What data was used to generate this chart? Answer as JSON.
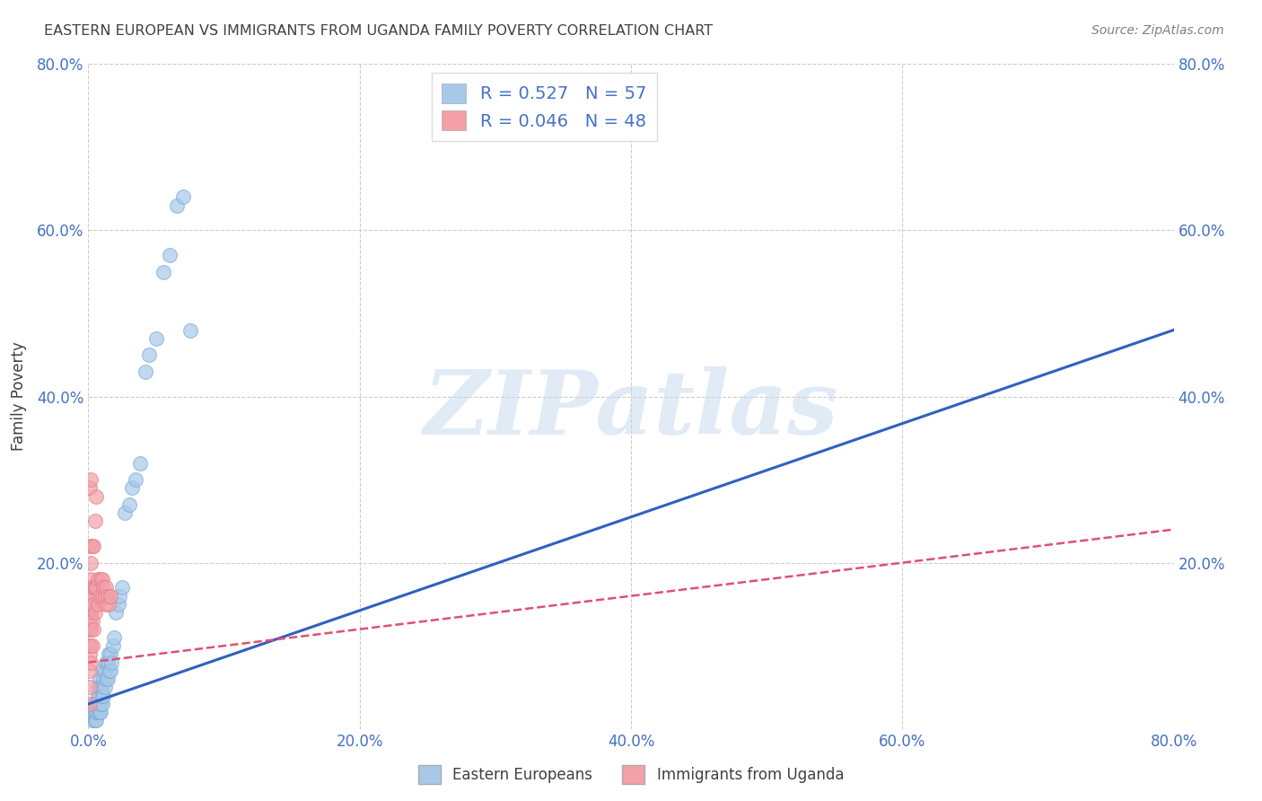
{
  "title": "EASTERN EUROPEAN VS IMMIGRANTS FROM UGANDA FAMILY POVERTY CORRELATION CHART",
  "source": "Source: ZipAtlas.com",
  "ylabel": "Family Poverty",
  "xlim": [
    0,
    0.8
  ],
  "ylim": [
    0,
    0.8
  ],
  "xticks": [
    0.0,
    0.2,
    0.4,
    0.6,
    0.8
  ],
  "yticks": [
    0.0,
    0.2,
    0.4,
    0.6,
    0.8
  ],
  "xticklabels": [
    "0.0%",
    "20.0%",
    "40.0%",
    "60.0%",
    "80.0%"
  ],
  "yticklabels_left": [
    "",
    "20.0%",
    "40.0%",
    "60.0%",
    "80.0%"
  ],
  "yticklabels_right": [
    "",
    "20.0%",
    "40.0%",
    "60.0%",
    "80.0%"
  ],
  "blue_R": 0.527,
  "blue_N": 57,
  "pink_R": 0.046,
  "pink_N": 48,
  "blue_color": "#a8c8e8",
  "pink_color": "#f4a0a8",
  "blue_line_color": "#3060c0",
  "pink_line_color": "#e05070",
  "watermark": "ZIPatlas",
  "legend_label_blue": "Eastern Europeans",
  "legend_label_pink": "Immigrants from Uganda",
  "blue_scatter_x": [
    0.002,
    0.003,
    0.004,
    0.004,
    0.005,
    0.005,
    0.005,
    0.006,
    0.006,
    0.006,
    0.007,
    0.007,
    0.007,
    0.007,
    0.008,
    0.008,
    0.008,
    0.008,
    0.009,
    0.009,
    0.009,
    0.01,
    0.01,
    0.01,
    0.01,
    0.011,
    0.011,
    0.012,
    0.012,
    0.013,
    0.013,
    0.014,
    0.014,
    0.015,
    0.015,
    0.016,
    0.016,
    0.017,
    0.018,
    0.019,
    0.02,
    0.022,
    0.023,
    0.025,
    0.027,
    0.03,
    0.032,
    0.035,
    0.038,
    0.042,
    0.045,
    0.05,
    0.055,
    0.06,
    0.065,
    0.07,
    0.075
  ],
  "blue_scatter_y": [
    0.02,
    0.01,
    0.02,
    0.03,
    0.01,
    0.02,
    0.03,
    0.01,
    0.02,
    0.03,
    0.02,
    0.03,
    0.04,
    0.05,
    0.02,
    0.03,
    0.04,
    0.06,
    0.02,
    0.03,
    0.05,
    0.03,
    0.04,
    0.05,
    0.07,
    0.04,
    0.06,
    0.05,
    0.07,
    0.06,
    0.08,
    0.06,
    0.08,
    0.07,
    0.09,
    0.07,
    0.09,
    0.08,
    0.1,
    0.11,
    0.14,
    0.15,
    0.16,
    0.17,
    0.26,
    0.27,
    0.29,
    0.3,
    0.32,
    0.43,
    0.45,
    0.47,
    0.55,
    0.57,
    0.63,
    0.64,
    0.48
  ],
  "pink_scatter_x": [
    0.001,
    0.001,
    0.001,
    0.001,
    0.001,
    0.001,
    0.001,
    0.001,
    0.001,
    0.001,
    0.001,
    0.001,
    0.002,
    0.002,
    0.002,
    0.002,
    0.002,
    0.002,
    0.002,
    0.002,
    0.002,
    0.002,
    0.003,
    0.003,
    0.003,
    0.003,
    0.004,
    0.004,
    0.004,
    0.004,
    0.005,
    0.005,
    0.005,
    0.006,
    0.006,
    0.007,
    0.007,
    0.008,
    0.009,
    0.01,
    0.01,
    0.011,
    0.012,
    0.013,
    0.013,
    0.014,
    0.015,
    0.016
  ],
  "pink_scatter_y": [
    0.03,
    0.05,
    0.07,
    0.09,
    0.1,
    0.12,
    0.13,
    0.14,
    0.15,
    0.16,
    0.17,
    0.29,
    0.08,
    0.1,
    0.12,
    0.14,
    0.15,
    0.17,
    0.18,
    0.2,
    0.22,
    0.3,
    0.1,
    0.13,
    0.16,
    0.22,
    0.12,
    0.15,
    0.17,
    0.22,
    0.14,
    0.17,
    0.25,
    0.17,
    0.28,
    0.15,
    0.18,
    0.16,
    0.18,
    0.16,
    0.18,
    0.17,
    0.16,
    0.15,
    0.17,
    0.16,
    0.15,
    0.16
  ],
  "blue_line_x0": 0.0,
  "blue_line_x1": 0.8,
  "blue_line_y0": 0.03,
  "blue_line_y1": 0.48,
  "pink_line_x0": 0.0,
  "pink_line_x1": 0.8,
  "pink_line_y0": 0.08,
  "pink_line_y1": 0.24,
  "background_color": "#ffffff",
  "grid_color": "#cccccc",
  "tick_color": "#4472c4",
  "title_color": "#404040",
  "source_color": "#808080"
}
